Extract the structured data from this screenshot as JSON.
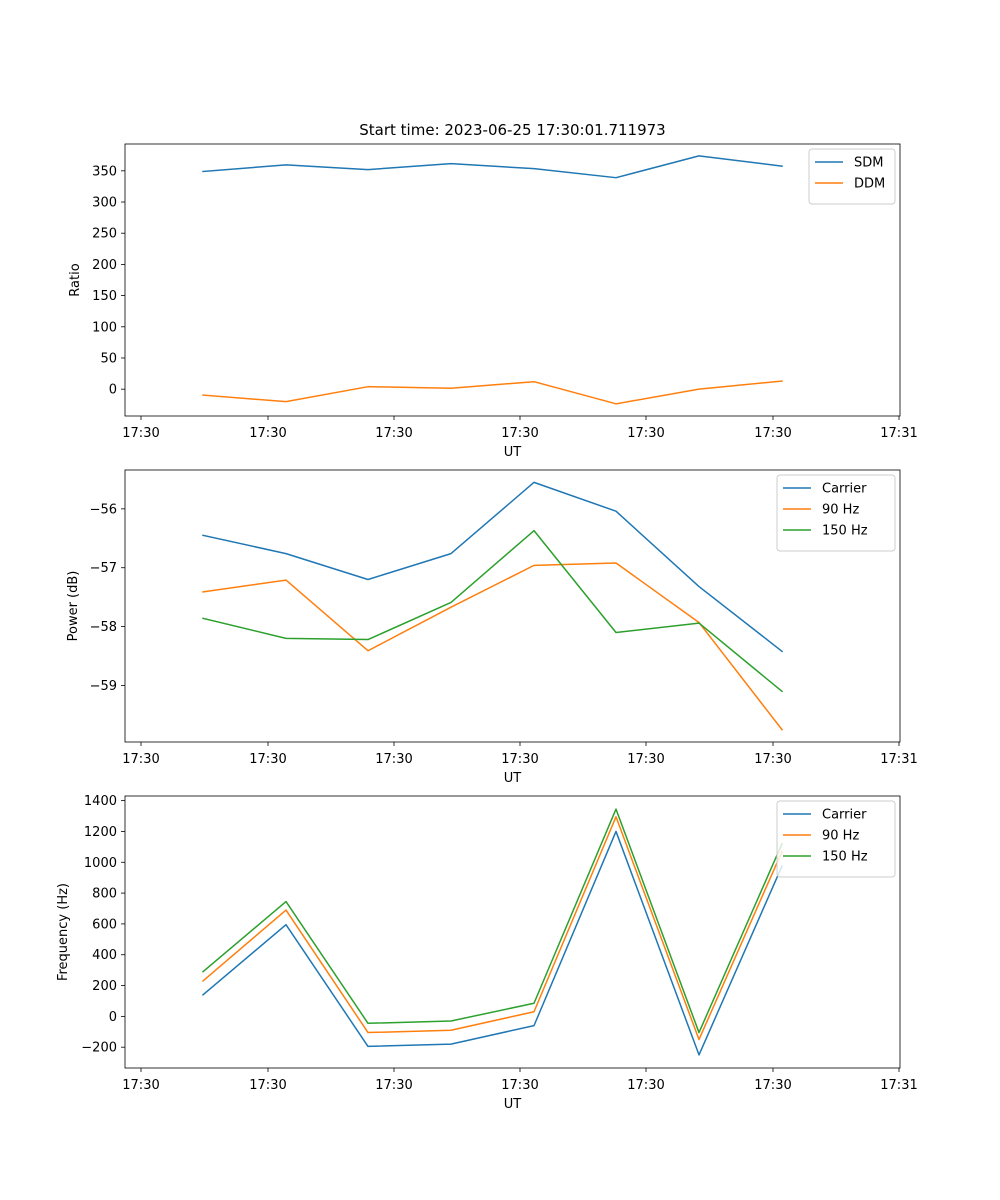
{
  "chart_data": [
    {
      "type": "line",
      "title": "Start time: 2023-06-25 17:30:01.711973",
      "xlabel": "UT",
      "ylabel": "Ratio",
      "legend_position": "top-right",
      "x_tick_labels": [
        "17:30",
        "17:30",
        "17:30",
        "17:30",
        "17:30",
        "17:30",
        "17:30",
        "17:31"
      ],
      "y_ticks": [
        0,
        50,
        100,
        150,
        200,
        250,
        300,
        350
      ],
      "ylim": [
        -43,
        393
      ],
      "series": [
        {
          "name": "SDM",
          "color": "#1f77b4",
          "values": [
            349,
            359.5,
            352,
            361.5,
            353.5,
            339,
            374,
            357.5
          ]
        },
        {
          "name": "DDM",
          "color": "#ff7f0e",
          "values": [
            -9.5,
            -20,
            4,
            1.5,
            12,
            -23.5,
            0,
            13
          ]
        }
      ]
    },
    {
      "type": "line",
      "title": "",
      "xlabel": "UT",
      "ylabel": "Power (dB)",
      "legend_position": "top-right",
      "x_tick_labels": [
        "17:30",
        "17:30",
        "17:30",
        "17:30",
        "17:30",
        "17:30",
        "17:30",
        "17:31"
      ],
      "y_ticks": [
        -59,
        -58,
        -57,
        -56
      ],
      "ylim": [
        -59.96,
        -55.34
      ],
      "series": [
        {
          "name": "Carrier",
          "color": "#1f77b4",
          "values": [
            -56.45,
            -56.76,
            -57.2,
            -56.76,
            -55.55,
            -56.04,
            -57.32,
            -58.42
          ]
        },
        {
          "name": "90 Hz",
          "color": "#ff7f0e",
          "values": [
            -57.41,
            -57.21,
            -58.41,
            -57.67,
            -56.96,
            -56.92,
            -57.93,
            -59.75
          ]
        },
        {
          "name": "150 Hz",
          "color": "#2ca02c",
          "values": [
            -57.86,
            -58.2,
            -58.22,
            -57.59,
            -56.37,
            -58.1,
            -57.94,
            -59.1
          ]
        }
      ]
    },
    {
      "type": "line",
      "title": "",
      "xlabel": "UT",
      "ylabel": "Frequency (Hz)",
      "legend_position": "top-right",
      "x_tick_labels": [
        "17:30",
        "17:30",
        "17:30",
        "17:30",
        "17:30",
        "17:30",
        "17:30",
        "17:31"
      ],
      "y_ticks": [
        -200,
        0,
        200,
        400,
        600,
        800,
        1000,
        1200,
        1400
      ],
      "ylim": [
        -335,
        1430
      ],
      "series": [
        {
          "name": "Carrier",
          "color": "#1f77b4",
          "values": [
            140,
            595,
            -195,
            -180,
            -60,
            1200,
            -250,
            975
          ]
        },
        {
          "name": "90 Hz",
          "color": "#ff7f0e",
          "values": [
            230,
            690,
            -105,
            -90,
            30,
            1295,
            -150,
            1070
          ]
        },
        {
          "name": "150 Hz",
          "color": "#2ca02c",
          "values": [
            290,
            745,
            -45,
            -30,
            85,
            1345,
            -105,
            1120
          ]
        }
      ]
    }
  ]
}
